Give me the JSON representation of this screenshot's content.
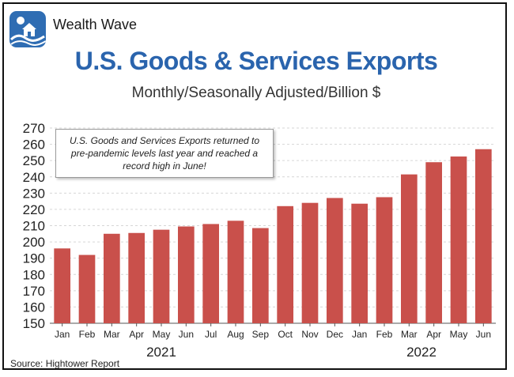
{
  "header": {
    "brand": "Wealth Wave",
    "title": "U.S. Goods & Services Exports",
    "subtitle": "Monthly/Seasonally Adjusted/Billion $"
  },
  "annotation": "U.S. Goods and Services Exports returned to pre-pandemic levels last year and reached a record high in June!",
  "source": "Source: Hightower Report",
  "colors": {
    "bar": "#c9504b",
    "title": "#2a64ad",
    "logo": "#2f6db3"
  },
  "chart_data": {
    "type": "bar",
    "title": "U.S. Goods & Services Exports",
    "subtitle": "Monthly/Seasonally Adjusted/Billion $",
    "xlabel": "",
    "ylabel": "",
    "categories": [
      "Jan",
      "Feb",
      "Mar",
      "Apr",
      "May",
      "Jun",
      "Jul",
      "Aug",
      "Sep",
      "Oct",
      "Nov",
      "Dec",
      "Jan",
      "Feb",
      "Mar",
      "Apr",
      "May",
      "Jun"
    ],
    "year_groups": [
      {
        "label": "2021",
        "from": 0,
        "to": 8
      },
      {
        "label": "2022",
        "from": 12,
        "to": 17
      }
    ],
    "values": [
      196,
      192,
      205,
      205.5,
      207.5,
      209.5,
      211,
      213,
      208.5,
      222,
      224,
      227,
      223.5,
      227.5,
      241.5,
      249,
      252.5,
      257
    ],
    "ylim": [
      150,
      270
    ],
    "yticks": [
      150,
      160,
      170,
      180,
      190,
      200,
      210,
      220,
      230,
      240,
      250,
      260,
      270
    ],
    "grid": true
  }
}
